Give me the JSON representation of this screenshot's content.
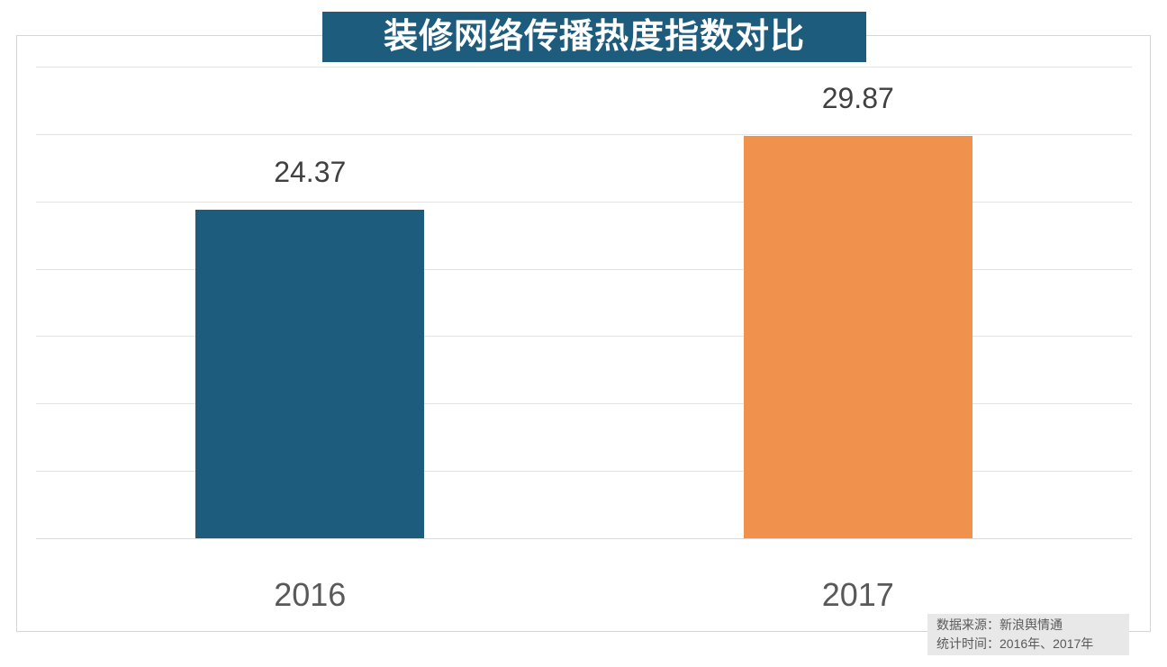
{
  "title_bar": {
    "text": "装修网络传播热度指数对比",
    "bg_color": "#1E5C7E",
    "text_color": "#FFFFFF"
  },
  "chart_data": {
    "type": "bar",
    "title": "装修网络传播热度指数对比",
    "categories": [
      "2016",
      "2017"
    ],
    "values": [
      24.37,
      29.87
    ],
    "data_labels": [
      "24.37",
      "29.87"
    ],
    "bar_colors": [
      "#1E5C7E",
      "#F0924D"
    ],
    "xlabel": "",
    "ylabel": "",
    "ylim": [
      0,
      35
    ],
    "gridline_interval": 5,
    "grid": true,
    "y_axis_tick_labels_visible": false,
    "legend": "none"
  },
  "source_note": {
    "lines": [
      "数据来源：新浪舆情通",
      "统计时间：2016年、2017年"
    ],
    "bg_color": "#E8E8E8"
  },
  "colors": {
    "background": "#FFFFFF",
    "frame_border": "#D6D6D6",
    "gridline": "#E3E3E3",
    "value_label_text": "#404040",
    "category_label_text": "#595959",
    "note_text": "#595959"
  }
}
